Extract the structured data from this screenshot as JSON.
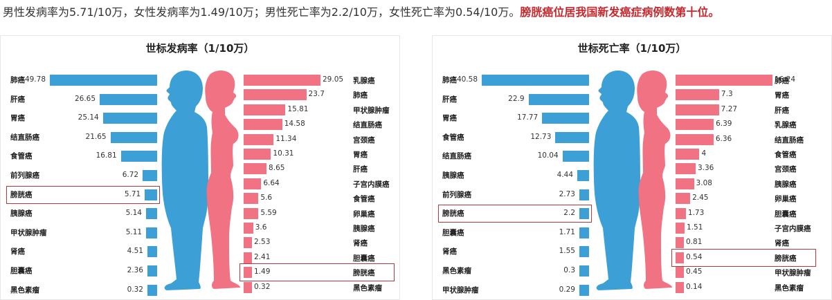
{
  "caption": {
    "text": "男性发病率为5.71/10万，女性发病率为1.49/10万；男性死亡率为2.2/10万，女性死亡率为0.54/10万。",
    "highlight": "膀胱癌位居我国新发癌症病例数第十位。"
  },
  "colors": {
    "male": "#3c9fd5",
    "female": "#f07283",
    "highlight_border": "#b4393c",
    "highlight_text": "#c7282e"
  },
  "icons": {
    "male_figure": "male-silhouette-icon",
    "female_figure": "female-silhouette-icon"
  },
  "chart_data": [
    {
      "type": "bar",
      "title": "世标发病率（1/10万）",
      "orientation": "horizontal-butterfly",
      "unit": "1/10万",
      "highlight_category": "膀胱癌",
      "series": [
        {
          "name": "男性",
          "color": "#3c9fd5",
          "direction": "left",
          "categories": [
            "肺癌",
            "肝癌",
            "胃癌",
            "结直肠癌",
            "食管癌",
            "前列腺癌",
            "膀胱癌",
            "胰腺癌",
            "甲状腺肿瘤",
            "肾癌",
            "胆囊癌",
            "黑色素瘤"
          ],
          "values": [
            49.78,
            26.65,
            25.14,
            21.65,
            16.81,
            6.72,
            5.71,
            5.14,
            5.11,
            4.51,
            2.36,
            0.32
          ],
          "labels": [
            "49.78",
            "26.65",
            "25.14",
            "21.65",
            "16.81",
            "6.72",
            "5.71",
            "5.14",
            "5.11",
            "4.51",
            "2.36",
            "0.32"
          ]
        },
        {
          "name": "女性",
          "color": "#f07283",
          "direction": "right",
          "categories": [
            "乳腺癌",
            "肺癌",
            "甲状腺肿瘤",
            "结直肠癌",
            "宫颈癌",
            "胃癌",
            "肝癌",
            "子宫内膜癌",
            "食管癌",
            "卵巢癌",
            "胰腺癌",
            "肾癌",
            "胆囊癌",
            "膀胱癌",
            "黑色素瘤"
          ],
          "values": [
            29.05,
            23.7,
            15.81,
            14.58,
            11.34,
            10.31,
            8.65,
            6.64,
            5.6,
            5.59,
            3.6,
            2.53,
            2.41,
            1.49,
            0.32
          ],
          "labels": [
            "29.05",
            "23.7",
            "15.81",
            "14.58",
            "11.34",
            "10.31",
            "8.65",
            "6.64",
            "5.6",
            "5.59",
            "3.6",
            "2.53",
            "2.41",
            "1.49",
            "0.32"
          ]
        }
      ]
    },
    {
      "type": "bar",
      "title": "世标死亡率（1/10万）",
      "orientation": "horizontal-butterfly",
      "unit": "1/10万",
      "highlight_category": "膀胱癌",
      "series": [
        {
          "name": "男性",
          "color": "#3c9fd5",
          "direction": "left",
          "categories": [
            "肺癌",
            "肝癌",
            "胃癌",
            "食管癌",
            "结直肠癌",
            "胰腺癌",
            "前列腺癌",
            "膀胱癌",
            "胆囊癌",
            "肾癌",
            "黑色素瘤",
            "甲状腺肿瘤"
          ],
          "values": [
            40.58,
            22.9,
            17.77,
            12.73,
            10.04,
            4.44,
            2.73,
            2.2,
            1.71,
            1.55,
            0.3,
            0.29
          ],
          "labels": [
            "40.58",
            "22.9",
            "17.77",
            "12.73",
            "10.04",
            "4.44",
            "2.73",
            "2.2",
            "1.71",
            "1.55",
            "0.3",
            "0.29"
          ]
        },
        {
          "name": "女性",
          "color": "#f07283",
          "direction": "right",
          "categories": [
            "肺癌",
            "胃癌",
            "肝癌",
            "乳腺癌",
            "结直肠癌",
            "食管癌",
            "宫颈癌",
            "胰腺癌",
            "卵巢癌",
            "胆囊癌",
            "子宫内膜癌",
            "肾癌",
            "膀胱癌",
            "甲状腺肿瘤",
            "黑色素瘤"
          ],
          "values": [
            16.24,
            7.3,
            7.27,
            6.39,
            6.36,
            4,
            3.36,
            3.08,
            2.45,
            1.73,
            1.51,
            0.81,
            0.54,
            0.45,
            0.14
          ],
          "labels": [
            "16.24",
            "7.3",
            "7.27",
            "6.39",
            "6.36",
            "4",
            "3.36",
            "3.08",
            "2.45",
            "1.73",
            "1.51",
            "0.81",
            "0.54",
            "0.45",
            "0.14"
          ]
        }
      ]
    }
  ]
}
